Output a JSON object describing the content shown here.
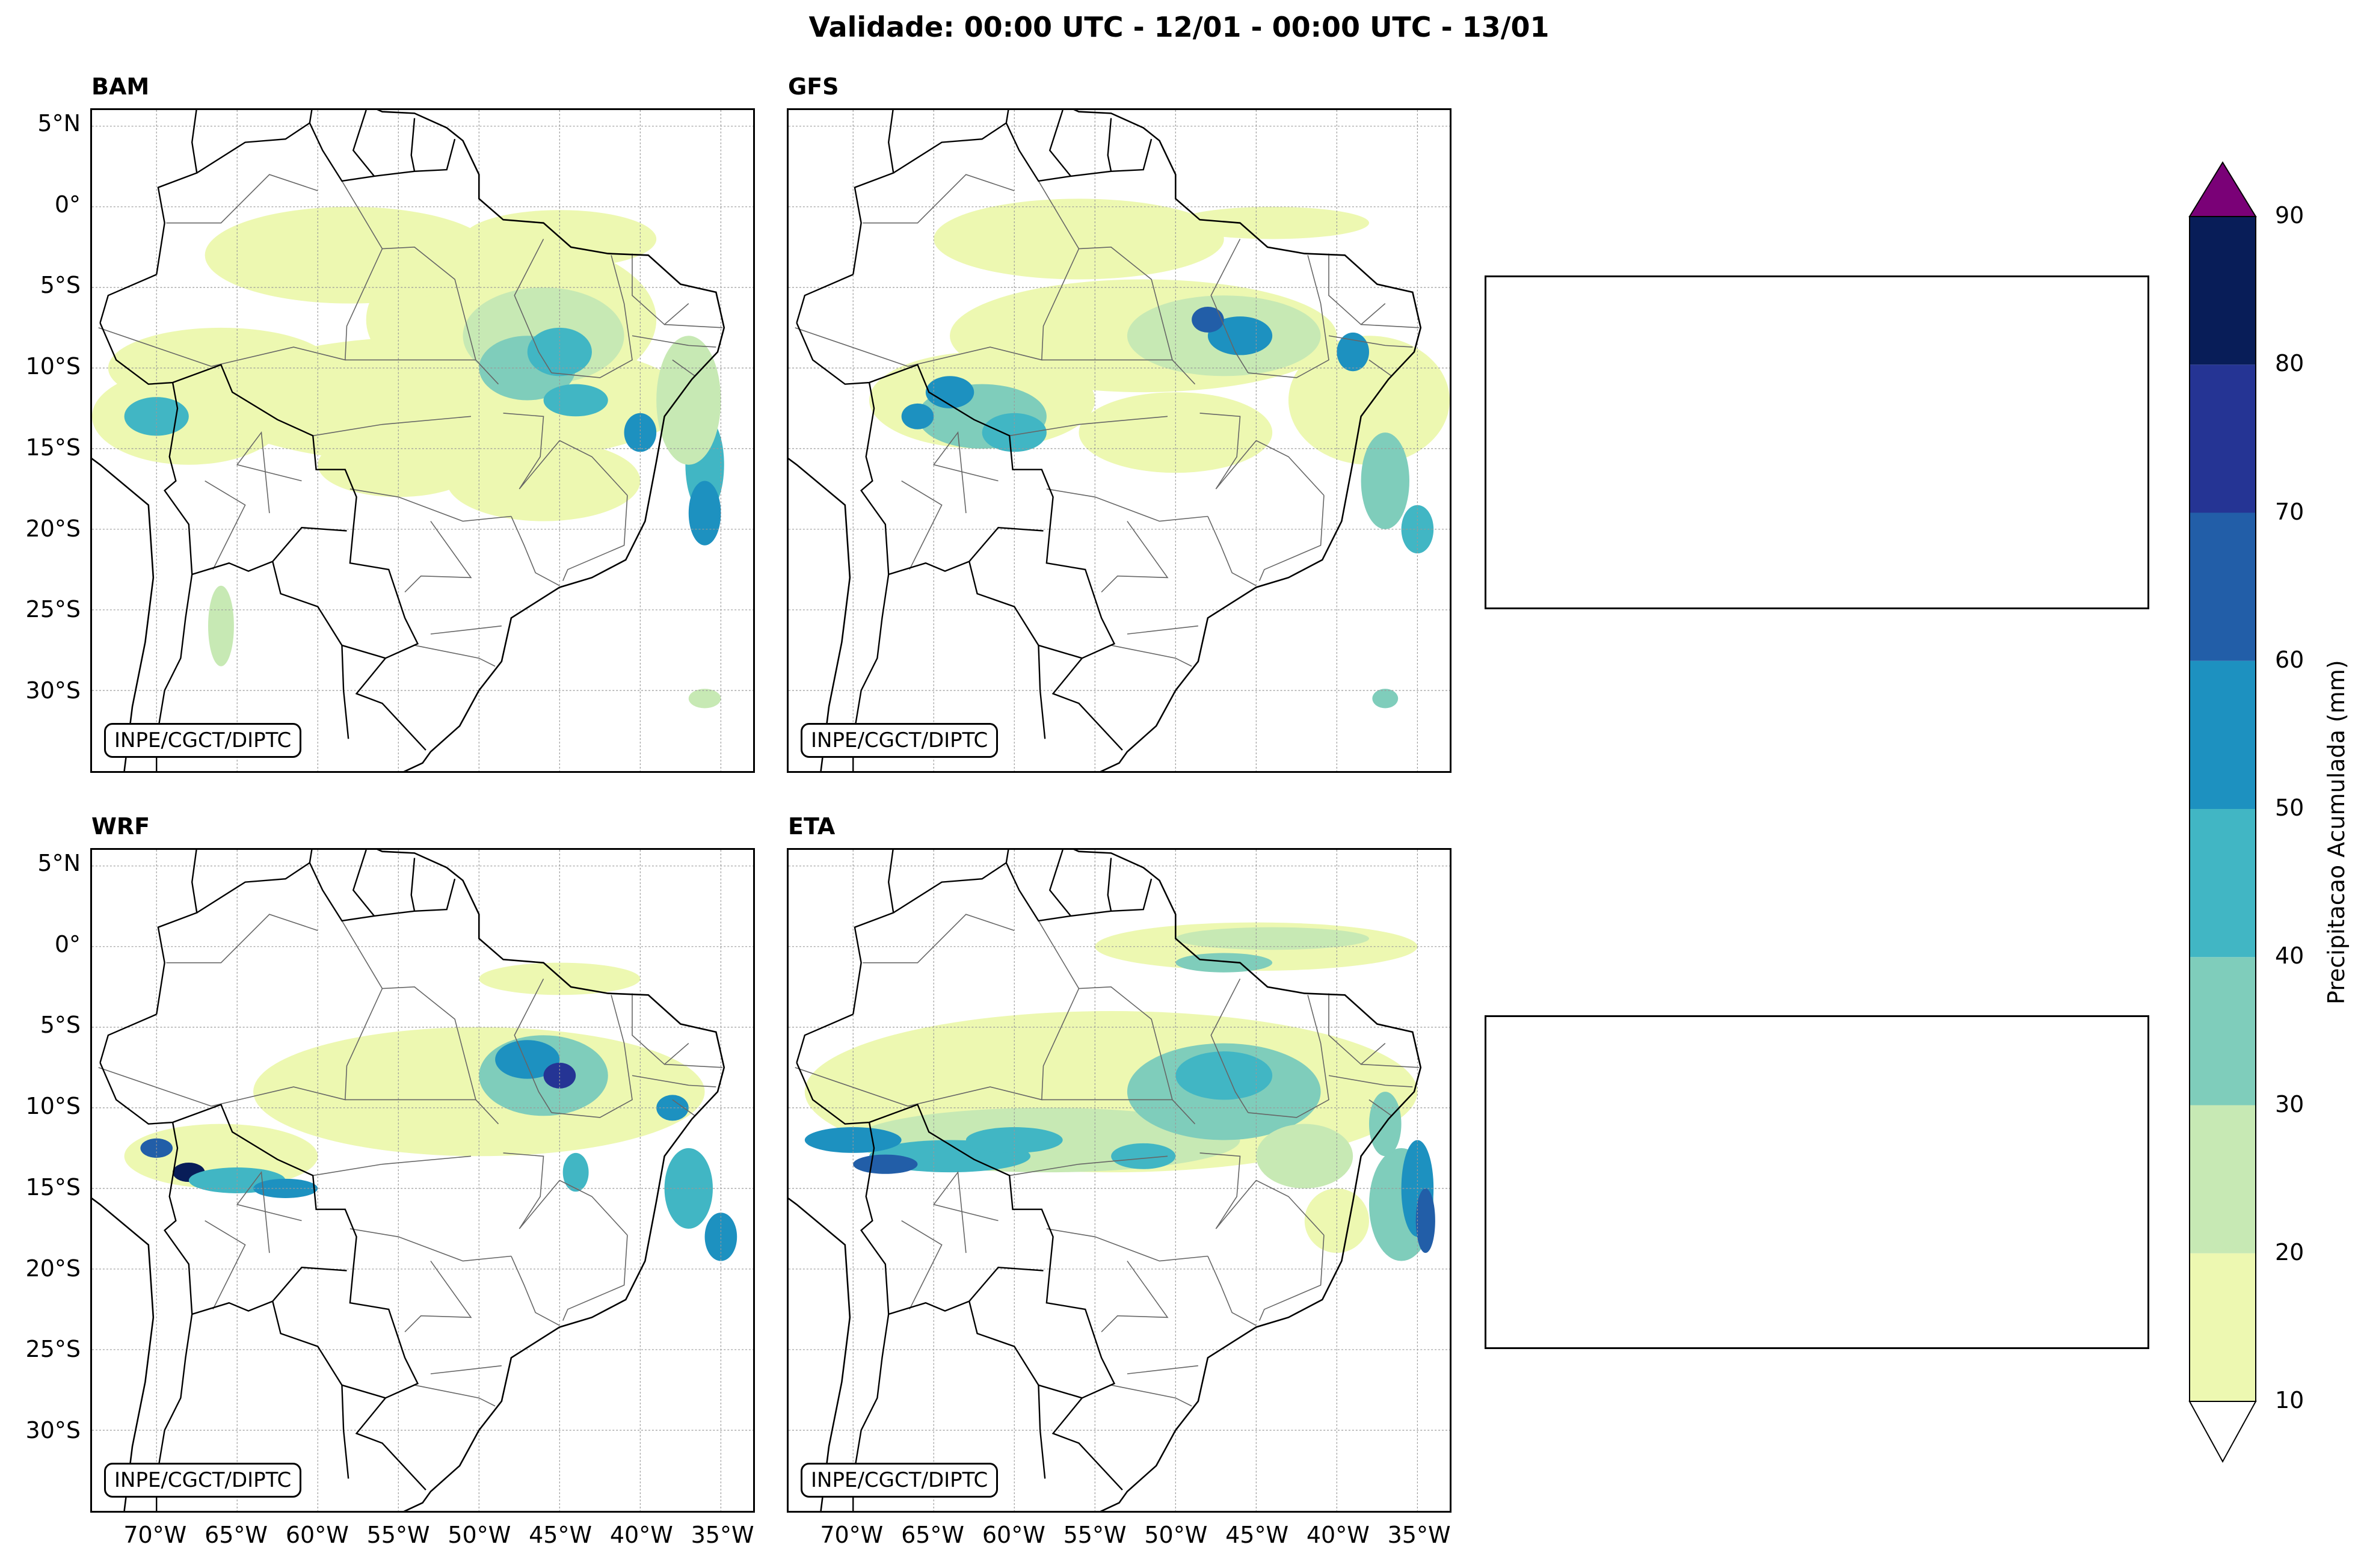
{
  "title": "Validade: 00:00 UTC - 12/01 - 00:00 UTC - 13/01",
  "panels": [
    {
      "model": "BAM",
      "credit": "INPE/CGCT/DIPTC"
    },
    {
      "model": "GFS",
      "credit": "INPE/CGCT/DIPTC"
    },
    {
      "model": "WRF",
      "credit": "INPE/CGCT/DIPTC"
    },
    {
      "model": "ETA",
      "credit": "INPE/CGCT/DIPTC"
    }
  ],
  "lat_ticks": [
    "5°N",
    "0°",
    "5°S",
    "10°S",
    "15°S",
    "20°S",
    "25°S",
    "30°S"
  ],
  "lon_ticks": [
    "70°W",
    "65°W",
    "60°W",
    "55°W",
    "50°W",
    "45°W",
    "40°W",
    "35°W"
  ],
  "extent": {
    "lon_min": -74,
    "lon_max": -33,
    "lat_min": -35,
    "lat_max": 6
  },
  "colorbar": {
    "label": "Precipitacao Acumulada (mm)",
    "levels": [
      "10",
      "20",
      "30",
      "40",
      "50",
      "60",
      "70",
      "80",
      "90"
    ],
    "colors": [
      "#edf8b1",
      "#c7e9b4",
      "#7fcdbb",
      "#41b6c4",
      "#1d91c0",
      "#225ea8",
      "#253494",
      "#081d58"
    ],
    "over_color": "#7a0177"
  }
}
